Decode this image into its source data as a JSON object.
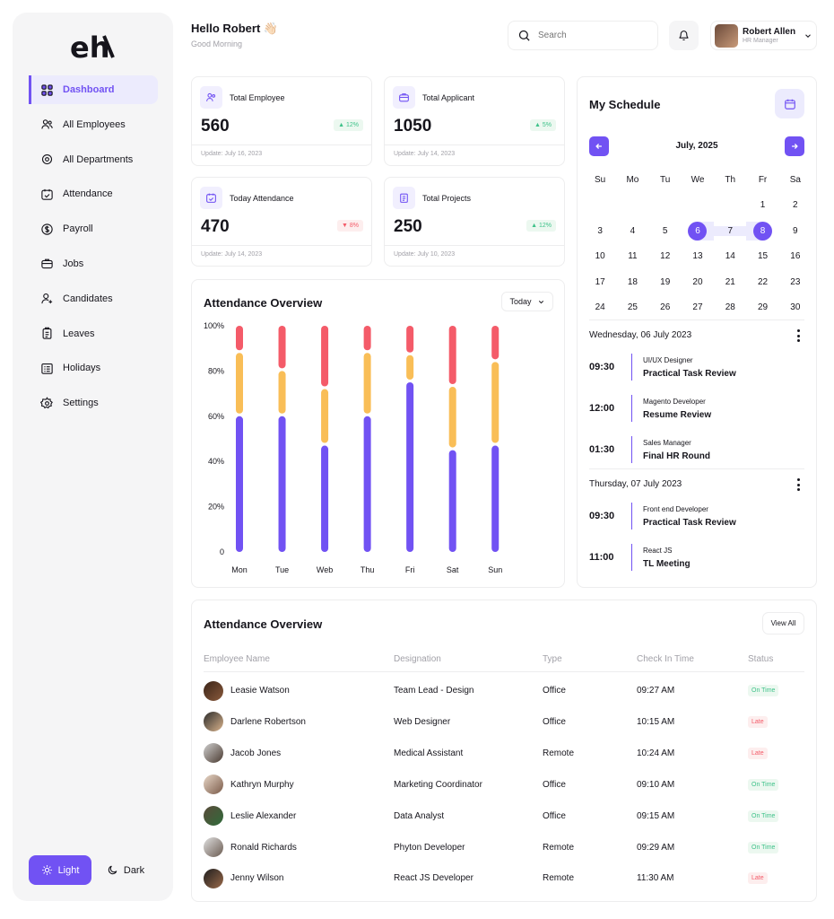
{
  "sidebar": {
    "logo": "eh",
    "items": [
      {
        "label": "Dashboard",
        "icon": "grid-icon",
        "active": true
      },
      {
        "label": "All Employees",
        "icon": "users-icon"
      },
      {
        "label": "All Departments",
        "icon": "departments-icon"
      },
      {
        "label": "Attendance",
        "icon": "calendar-check-icon"
      },
      {
        "label": "Payroll",
        "icon": "dollar-icon"
      },
      {
        "label": "Jobs",
        "icon": "briefcase-icon"
      },
      {
        "label": "Candidates",
        "icon": "user-plus-icon"
      },
      {
        "label": "Leaves",
        "icon": "clipboard-icon"
      },
      {
        "label": "Holidays",
        "icon": "list-icon"
      },
      {
        "label": "Settings",
        "icon": "gear-icon"
      }
    ],
    "theme": {
      "light": "Light",
      "dark": "Dark"
    }
  },
  "header": {
    "greeting": "Hello Robert 👋🏻",
    "subtitle": "Good Morning",
    "search_placeholder": "Search",
    "user_name": "Robert Allen",
    "user_role": "HR Manager"
  },
  "stats": [
    {
      "label": "Total Employee",
      "value": "560",
      "badge": "12%",
      "trend": "up",
      "updated": "Update: July 16, 2023"
    },
    {
      "label": "Total Applicant",
      "value": "1050",
      "badge": "5%",
      "trend": "up",
      "updated": "Update: July 14, 2023"
    },
    {
      "label": "Today Attendance",
      "value": "470",
      "badge": "8%",
      "trend": "down",
      "updated": "Update: July 14, 2023"
    },
    {
      "label": "Total Projects",
      "value": "250",
      "badge": "12%",
      "trend": "up",
      "updated": "Update: July 10, 2023"
    }
  ],
  "attendance_chart": {
    "title": "Attendance Overview",
    "filter": "Today"
  },
  "chart_data": {
    "type": "bar",
    "title": "Attendance Overview",
    "categories": [
      "Mon",
      "Tue",
      "Web",
      "Thu",
      "Fri",
      "Sat",
      "Sun"
    ],
    "y_ticks": [
      "0",
      "20%",
      "40%",
      "60%",
      "80%",
      "100%"
    ],
    "ylim": [
      0,
      100
    ],
    "stacked": true,
    "colors": [
      "#7152f3",
      "#f9be57",
      "#f45b69"
    ],
    "series": [
      {
        "values": [
          60,
          60,
          47,
          60,
          75,
          45,
          47
        ]
      },
      {
        "values": [
          28,
          20,
          25,
          28,
          12,
          28,
          37
        ]
      },
      {
        "values": [
          12,
          20,
          28,
          12,
          13,
          27,
          16
        ]
      }
    ]
  },
  "schedule": {
    "title": "My Schedule",
    "month": "July, 2025",
    "weekdays": [
      "Su",
      "Mo",
      "Tu",
      "We",
      "Th",
      "Fr",
      "Sa"
    ],
    "weeks": [
      [
        "",
        "",
        "",
        "",
        "",
        "1",
        "2"
      ],
      [
        "3",
        "4",
        "5",
        "6",
        "7",
        "8",
        "9"
      ],
      [
        "10",
        "11",
        "12",
        "13",
        "14",
        "15",
        "16"
      ],
      [
        "17",
        "18",
        "19",
        "20",
        "21",
        "22",
        "23"
      ],
      [
        "24",
        "25",
        "26",
        "27",
        "28",
        "29",
        "30"
      ]
    ],
    "selected": [
      "6",
      "8"
    ],
    "in_range": [
      "7"
    ],
    "days": [
      {
        "date": "Wednesday, 06 July 2023",
        "events": [
          {
            "time": "09:30",
            "role": "UI/UX Designer",
            "title": "Practical Task Review"
          },
          {
            "time": "12:00",
            "role": "Magento Developer",
            "title": "Resume Review"
          },
          {
            "time": "01:30",
            "role": "Sales Manager",
            "title": "Final HR Round"
          }
        ]
      },
      {
        "date": "Thursday, 07 July 2023",
        "events": [
          {
            "time": "09:30",
            "role": "Front end Developer",
            "title": "Practical Task Review"
          },
          {
            "time": "11:00",
            "role": "React JS",
            "title": "TL Meeting"
          }
        ]
      }
    ]
  },
  "table": {
    "title": "Attendance Overview",
    "view_all": "View All",
    "headers": [
      "Employee Name",
      "Designation",
      "Type",
      "Check In Time",
      "Status"
    ],
    "rows": [
      {
        "name": "Leasie Watson",
        "designation": "Team Lead - Design",
        "type": "Office",
        "time": "09:27 AM",
        "status": "On Time"
      },
      {
        "name": "Darlene Robertson",
        "designation": "Web Designer",
        "type": "Office",
        "time": "10:15 AM",
        "status": "Late"
      },
      {
        "name": "Jacob Jones",
        "designation": "Medical Assistant",
        "type": "Remote",
        "time": "10:24 AM",
        "status": "Late"
      },
      {
        "name": "Kathryn Murphy",
        "designation": "Marketing Coordinator",
        "type": "Office",
        "time": "09:10 AM",
        "status": "On Time"
      },
      {
        "name": "Leslie Alexander",
        "designation": "Data Analyst",
        "type": "Office",
        "time": "09:15 AM",
        "status": "On Time"
      },
      {
        "name": "Ronald Richards",
        "designation": "Phyton Developer",
        "type": "Remote",
        "time": "09:29 AM",
        "status": "On Time"
      },
      {
        "name": "Jenny Wilson",
        "designation": "React JS Developer",
        "type": "Remote",
        "time": "11:30 AM",
        "status": "Late"
      }
    ]
  }
}
